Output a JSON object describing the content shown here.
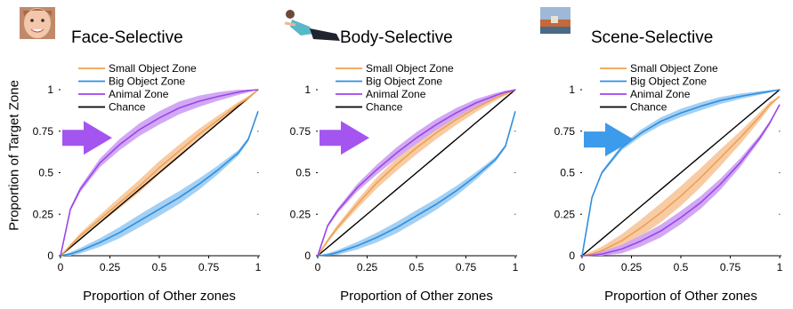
{
  "figure": {
    "ylabel": "Proportion of Target Zone"
  },
  "colors": {
    "small_object": "#F0A050",
    "big_object": "#2E8FE0",
    "animal": "#9B45E8",
    "chance": "#000000",
    "arrow_purple": "#A455F0",
    "arrow_blue": "#3C9BEA"
  },
  "chart_data": [
    {
      "type": "line",
      "title": "Face-Selective",
      "title_image": "face-photo",
      "xlabel": "Proportion of Other zones",
      "ylabel": "Proportion of Target Zone",
      "xlim": [
        0,
        1
      ],
      "ylim": [
        0,
        1
      ],
      "x_ticks": [
        "0",
        "0.25",
        "0.5",
        "0.75",
        "1"
      ],
      "y_ticks": [
        "0",
        "0.25",
        "0.5",
        "0.75",
        "1"
      ],
      "legend": [
        "Small Object Zone",
        "Big Object Zone",
        "Animal Zone",
        "Chance"
      ],
      "legend_position": "top-left",
      "arrow": {
        "color": "purple",
        "points_to": "Animal Zone",
        "y": 0.71
      },
      "x": [
        0,
        0.05,
        0.1,
        0.2,
        0.3,
        0.4,
        0.5,
        0.6,
        0.7,
        0.8,
        0.9,
        0.95,
        1.0
      ],
      "series": [
        {
          "name": "Small Object Zone",
          "values": [
            0,
            0.06,
            0.12,
            0.22,
            0.32,
            0.42,
            0.53,
            0.63,
            0.73,
            0.82,
            0.91,
            0.95,
            1.0
          ],
          "band": 0.04
        },
        {
          "name": "Big Object Zone",
          "values": [
            0,
            0.01,
            0.03,
            0.08,
            0.14,
            0.21,
            0.28,
            0.35,
            0.43,
            0.52,
            0.62,
            0.7,
            0.87
          ],
          "band": 0.04
        },
        {
          "name": "Animal Zone",
          "values": [
            0,
            0.28,
            0.4,
            0.56,
            0.67,
            0.76,
            0.83,
            0.89,
            0.93,
            0.96,
            0.985,
            0.995,
            1.0
          ],
          "band": 0.04
        },
        {
          "name": "Chance",
          "values": [
            0,
            0.05,
            0.1,
            0.2,
            0.3,
            0.4,
            0.5,
            0.6,
            0.7,
            0.8,
            0.9,
            0.95,
            1.0
          ],
          "band": 0
        }
      ]
    },
    {
      "type": "line",
      "title": "Body-Selective",
      "title_image": "body-photo",
      "xlabel": "Proportion of Other zones",
      "xlim": [
        0,
        1
      ],
      "ylim": [
        0,
        1
      ],
      "x_ticks": [
        "0",
        "0.25",
        "0.5",
        "0.75",
        "1"
      ],
      "y_ticks": [
        "0",
        "0.25",
        "0.5",
        "0.75",
        "1"
      ],
      "legend": [
        "Small Object Zone",
        "Big Object Zone",
        "Animal Zone",
        "Chance"
      ],
      "legend_position": "top-left",
      "arrow": {
        "color": "purple",
        "points_to": "Animal Zone",
        "y": 0.71
      },
      "x": [
        0,
        0.05,
        0.1,
        0.2,
        0.3,
        0.4,
        0.5,
        0.6,
        0.7,
        0.8,
        0.9,
        0.95,
        1.0
      ],
      "series": [
        {
          "name": "Small Object Zone",
          "values": [
            0,
            0.09,
            0.17,
            0.31,
            0.44,
            0.55,
            0.65,
            0.74,
            0.82,
            0.89,
            0.95,
            0.975,
            1.0
          ],
          "band": 0.04
        },
        {
          "name": "Big Object Zone",
          "values": [
            0,
            0.005,
            0.02,
            0.06,
            0.11,
            0.17,
            0.24,
            0.31,
            0.39,
            0.48,
            0.58,
            0.66,
            0.87
          ],
          "band": 0.035
        },
        {
          "name": "Animal Zone",
          "values": [
            0,
            0.18,
            0.27,
            0.41,
            0.52,
            0.62,
            0.71,
            0.79,
            0.86,
            0.92,
            0.965,
            0.985,
            1.0
          ],
          "band": 0.035
        },
        {
          "name": "Chance",
          "values": [
            0,
            0.05,
            0.1,
            0.2,
            0.3,
            0.4,
            0.5,
            0.6,
            0.7,
            0.8,
            0.9,
            0.95,
            1.0
          ],
          "band": 0
        }
      ]
    },
    {
      "type": "line",
      "title": "Scene-Selective",
      "title_image": "scene-photo",
      "xlabel": "Proportion of Other zones",
      "xlim": [
        0,
        1
      ],
      "ylim": [
        0,
        1
      ],
      "x_ticks": [
        "0",
        "0.25",
        "0.5",
        "0.75",
        "1"
      ],
      "y_ticks": [
        "0",
        "0.25",
        "0.5",
        "0.75",
        "1"
      ],
      "legend": [
        "Small Object Zone",
        "Big Object Zone",
        "Animal Zone",
        "Chance"
      ],
      "legend_position": "top-left",
      "arrow": {
        "color": "blue",
        "points_to": "Big Object Zone",
        "y": 0.7
      },
      "x": [
        0,
        0.05,
        0.1,
        0.2,
        0.3,
        0.4,
        0.5,
        0.6,
        0.7,
        0.8,
        0.9,
        0.95,
        1.0
      ],
      "series": [
        {
          "name": "Small Object Zone",
          "values": [
            0,
            0.01,
            0.03,
            0.09,
            0.17,
            0.26,
            0.36,
            0.47,
            0.59,
            0.71,
            0.84,
            0.91,
            0.96
          ],
          "band": 0.06
        },
        {
          "name": "Big Object Zone",
          "values": [
            0,
            0.35,
            0.5,
            0.65,
            0.74,
            0.81,
            0.86,
            0.9,
            0.935,
            0.96,
            0.98,
            0.99,
            1.0
          ],
          "band": 0.025
        },
        {
          "name": "Animal Zone",
          "values": [
            0,
            0.003,
            0.01,
            0.04,
            0.09,
            0.15,
            0.23,
            0.32,
            0.43,
            0.56,
            0.71,
            0.8,
            0.91
          ],
          "band": 0.04
        },
        {
          "name": "Chance",
          "values": [
            0,
            0.05,
            0.1,
            0.2,
            0.3,
            0.4,
            0.5,
            0.6,
            0.7,
            0.8,
            0.9,
            0.95,
            1.0
          ],
          "band": 0
        }
      ]
    }
  ]
}
